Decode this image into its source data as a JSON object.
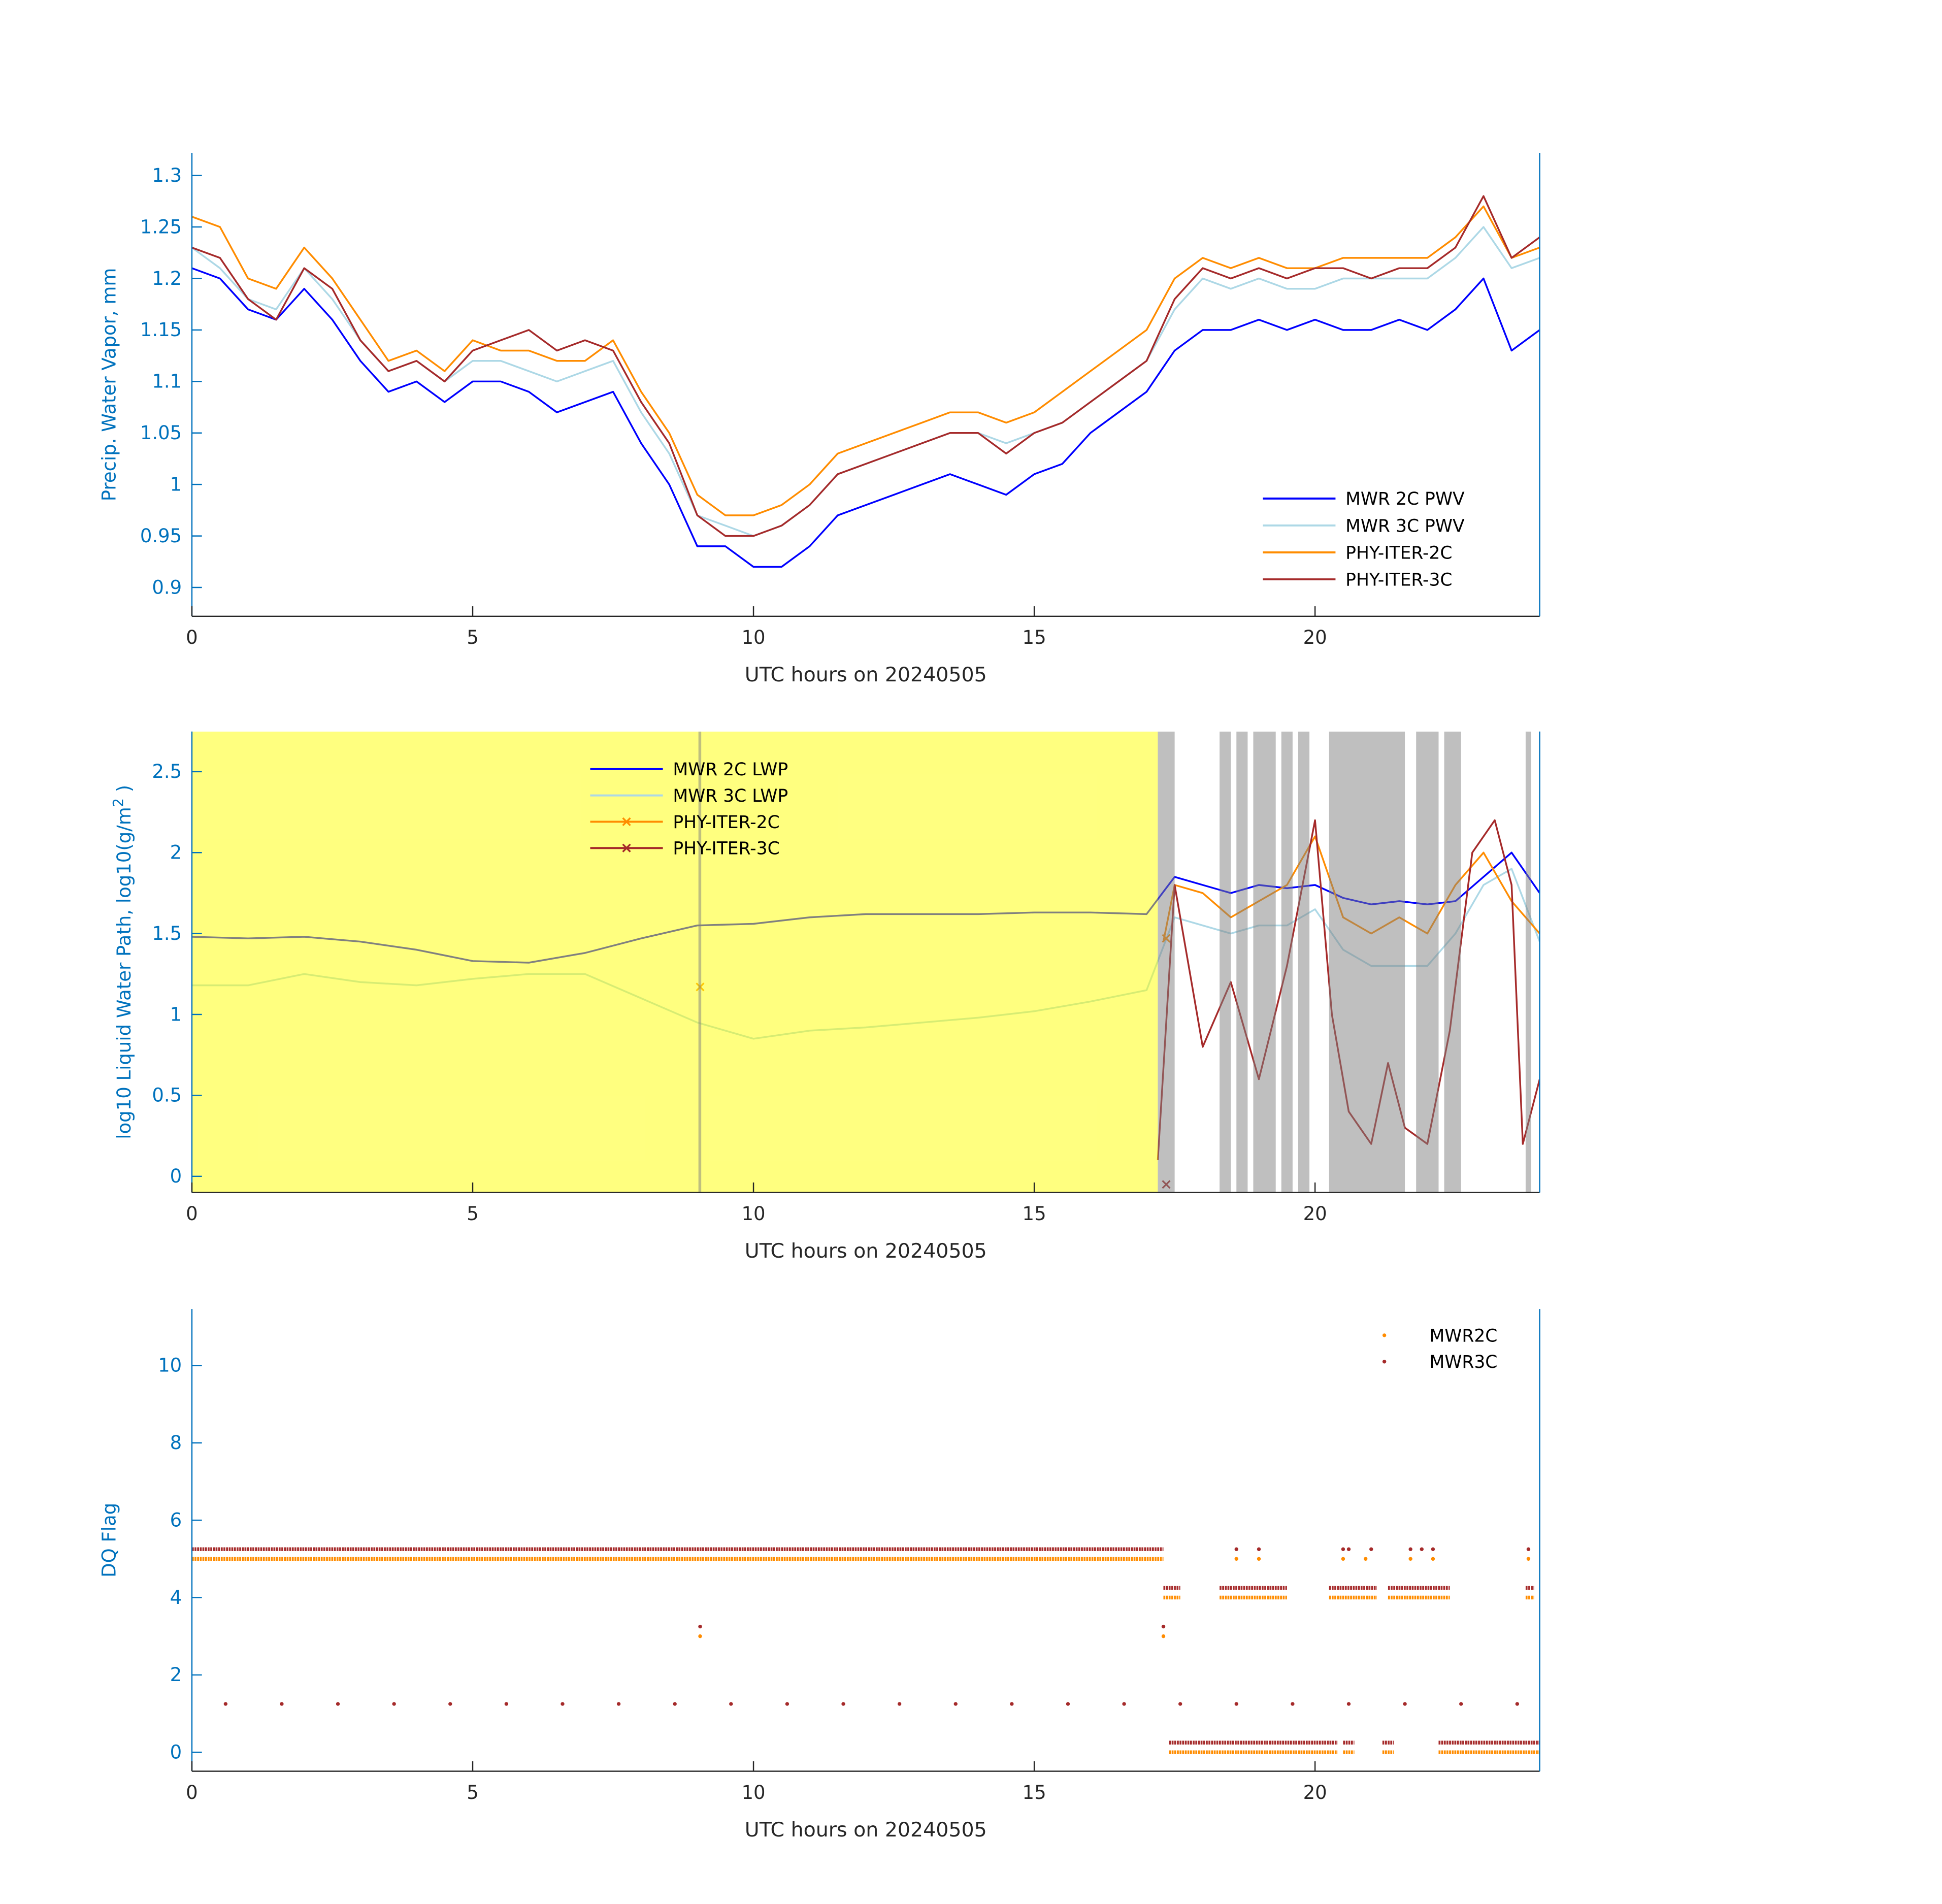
{
  "chart_data": [
    {
      "type": "line",
      "xlabel": "UTC hours on 20240505",
      "ylabel": "Precip. Water Vapor, mm",
      "xlim": [
        0,
        24
      ],
      "ylim": [
        0.872,
        1.322
      ],
      "xticks": [
        "0",
        "5",
        "10",
        "15",
        "20"
      ],
      "xtick_values": [
        0,
        5,
        10,
        15,
        20
      ],
      "yticks": [
        "0.9",
        "0.95",
        "1",
        "1.05",
        "1.1",
        "1.15",
        "1.2",
        "1.25",
        "1.3"
      ],
      "ytick_values": [
        0.9,
        0.95,
        1,
        1.05,
        1.1,
        1.15,
        1.2,
        1.25,
        1.3
      ],
      "legend_position": "bottom-right",
      "x_step": 0.5,
      "series": [
        {
          "name": "MWR 2C PWV",
          "color": "#0000ff",
          "values": [
            1.21,
            1.2,
            1.17,
            1.16,
            1.19,
            1.16,
            1.12,
            1.09,
            1.1,
            1.08,
            1.1,
            1.1,
            1.09,
            1.07,
            1.08,
            1.09,
            1.04,
            1.0,
            0.94,
            0.94,
            0.92,
            0.92,
            0.94,
            0.97,
            0.98,
            0.99,
            1.0,
            1.01,
            1.0,
            0.99,
            1.01,
            1.02,
            1.05,
            1.07,
            1.09,
            1.13,
            1.15,
            1.15,
            1.16,
            1.15,
            1.16,
            1.15,
            1.15,
            1.16,
            1.15,
            1.17,
            1.2,
            1.13,
            1.15
          ]
        },
        {
          "name": "MWR 3C PWV",
          "color": "#add8e6",
          "values": [
            1.23,
            1.21,
            1.18,
            1.17,
            1.21,
            1.18,
            1.14,
            1.11,
            1.12,
            1.1,
            1.12,
            1.12,
            1.11,
            1.1,
            1.11,
            1.12,
            1.07,
            1.03,
            0.97,
            0.96,
            0.95,
            0.96,
            0.98,
            1.01,
            1.02,
            1.03,
            1.04,
            1.05,
            1.05,
            1.04,
            1.05,
            1.06,
            1.08,
            1.1,
            1.12,
            1.17,
            1.2,
            1.19,
            1.2,
            1.19,
            1.19,
            1.2,
            1.2,
            1.2,
            1.2,
            1.22,
            1.25,
            1.21,
            1.22
          ]
        },
        {
          "name": "PHY-ITER-2C",
          "color": "#ff8c00",
          "values": [
            1.26,
            1.25,
            1.2,
            1.19,
            1.23,
            1.2,
            1.16,
            1.12,
            1.13,
            1.11,
            1.14,
            1.13,
            1.13,
            1.12,
            1.12,
            1.14,
            1.09,
            1.05,
            0.99,
            0.97,
            0.97,
            0.98,
            1.0,
            1.03,
            1.04,
            1.05,
            1.06,
            1.07,
            1.07,
            1.06,
            1.07,
            1.09,
            1.11,
            1.13,
            1.15,
            1.2,
            1.22,
            1.21,
            1.22,
            1.21,
            1.21,
            1.22,
            1.22,
            1.22,
            1.22,
            1.24,
            1.27,
            1.22,
            1.23
          ]
        },
        {
          "name": "PHY-ITER-3C",
          "color": "#a52a2a",
          "values": [
            1.23,
            1.22,
            1.18,
            1.16,
            1.21,
            1.19,
            1.14,
            1.11,
            1.12,
            1.1,
            1.13,
            1.14,
            1.15,
            1.13,
            1.14,
            1.13,
            1.08,
            1.04,
            0.97,
            0.95,
            0.95,
            0.96,
            0.98,
            1.01,
            1.02,
            1.03,
            1.04,
            1.05,
            1.05,
            1.03,
            1.05,
            1.06,
            1.08,
            1.1,
            1.12,
            1.18,
            1.21,
            1.2,
            1.21,
            1.2,
            1.21,
            1.21,
            1.2,
            1.21,
            1.21,
            1.23,
            1.28,
            1.22,
            1.24
          ]
        }
      ]
    },
    {
      "type": "line",
      "xlabel": "UTC hours on 20240505",
      "ylabel": "log10 Liquid Water Path, log10(g/m",
      "ylabel_sup": "2",
      "ylabel_end": " )",
      "xlim": [
        0,
        24
      ],
      "ylim": [
        -0.1,
        2.748
      ],
      "xticks": [
        "0",
        "5",
        "10",
        "15",
        "20"
      ],
      "xtick_values": [
        0,
        5,
        10,
        15,
        20
      ],
      "yticks": [
        "0",
        "0.5",
        "1",
        "1.5",
        "2",
        "2.5"
      ],
      "ytick_values": [
        0,
        0.5,
        1,
        1.5,
        2,
        2.5
      ],
      "legend_position": "top-center",
      "yellow_shading_hours": [
        0,
        17.2
      ],
      "gray_shading_hours": [
        [
          9.02,
          9.07
        ],
        [
          17.2,
          17.5
        ],
        [
          18.3,
          18.5
        ],
        [
          18.6,
          18.8
        ],
        [
          18.9,
          19.3
        ],
        [
          19.4,
          19.6
        ],
        [
          19.7,
          19.9
        ],
        [
          20.25,
          21.6
        ],
        [
          21.8,
          22.2
        ],
        [
          22.3,
          22.6
        ],
        [
          23.75,
          23.85
        ]
      ],
      "series": [
        {
          "name": "MWR 2C LWP",
          "color": "#0000ff",
          "marker": "none",
          "x": [
            0,
            1,
            2,
            3,
            4,
            5,
            6,
            7,
            8,
            9,
            10,
            11,
            12,
            13,
            14,
            15,
            16,
            17,
            17.5,
            18,
            18.5,
            19,
            19.5,
            20,
            20.5,
            21,
            21.5,
            22,
            22.5,
            23,
            23.5,
            24
          ],
          "values": [
            1.48,
            1.47,
            1.48,
            1.45,
            1.4,
            1.33,
            1.32,
            1.38,
            1.47,
            1.55,
            1.56,
            1.6,
            1.62,
            1.62,
            1.62,
            1.63,
            1.63,
            1.62,
            1.85,
            1.8,
            1.75,
            1.8,
            1.78,
            1.8,
            1.72,
            1.68,
            1.7,
            1.68,
            1.7,
            1.85,
            2.0,
            1.75
          ]
        },
        {
          "name": "MWR 3C LWP",
          "color": "#add8e6",
          "marker": "none",
          "x": [
            0,
            1,
            2,
            3,
            4,
            5,
            6,
            7,
            8,
            9,
            10,
            11,
            12,
            13,
            14,
            15,
            16,
            17,
            17.5,
            18,
            18.5,
            19,
            19.5,
            20,
            20.5,
            21,
            21.5,
            22,
            22.5,
            23,
            23.5,
            24
          ],
          "values": [
            1.18,
            1.18,
            1.25,
            1.2,
            1.18,
            1.22,
            1.25,
            1.25,
            1.1,
            0.95,
            0.85,
            0.9,
            0.92,
            0.95,
            0.98,
            1.02,
            1.08,
            1.15,
            1.6,
            1.55,
            1.5,
            1.55,
            1.55,
            1.65,
            1.4,
            1.3,
            1.3,
            1.3,
            1.5,
            1.8,
            1.9,
            1.45
          ]
        },
        {
          "name": "PHY-ITER-2C",
          "color": "#ff8c00",
          "marker": "x",
          "x": [
            17.3,
            17.5,
            18,
            18.5,
            19,
            19.5,
            20,
            20.5,
            21,
            21.5,
            22,
            22.5,
            23,
            23.5,
            24
          ],
          "values": [
            1.45,
            1.8,
            1.75,
            1.6,
            1.7,
            1.8,
            2.1,
            1.6,
            1.5,
            1.6,
            1.5,
            1.8,
            2.0,
            1.7,
            1.5
          ],
          "isolated_markers": [
            [
              9.05,
              1.17
            ],
            [
              17.35,
              1.47
            ]
          ]
        },
        {
          "name": "PHY-ITER-3C",
          "color": "#a52a2a",
          "marker": "x",
          "x": [
            17.2,
            17.5,
            17.8,
            18,
            18.5,
            19,
            19.5,
            20,
            20.3,
            20.6,
            21,
            21.3,
            21.6,
            22,
            22.4,
            22.8,
            23.2,
            23.5,
            23.7,
            24
          ],
          "values": [
            0.1,
            1.8,
            1.2,
            0.8,
            1.2,
            0.6,
            1.3,
            2.2,
            1.0,
            0.4,
            0.2,
            0.7,
            0.3,
            0.2,
            0.9,
            2.0,
            2.2,
            1.8,
            0.2,
            0.6
          ],
          "isolated_markers": [
            [
              17.35,
              -0.05
            ]
          ]
        }
      ]
    },
    {
      "type": "scatter",
      "xlabel": "UTC hours on 20240505",
      "ylabel": "DQ Flag",
      "xlim": [
        0,
        24
      ],
      "ylim": [
        -0.49,
        11.46
      ],
      "xticks": [
        "0",
        "5",
        "10",
        "15",
        "20"
      ],
      "xtick_values": [
        0,
        5,
        10,
        15,
        20
      ],
      "yticks": [
        "0",
        "2",
        "4",
        "6",
        "8",
        "10"
      ],
      "ytick_values": [
        0,
        2,
        4,
        6,
        8,
        10
      ],
      "legend_position": "top-right",
      "series": [
        {
          "name": "MWR2C",
          "color": "#ff8c00",
          "runs": [
            [
              0,
              17.3,
              5
            ],
            [
              17.4,
              20.4,
              0
            ],
            [
              20.5,
              20.7,
              0
            ],
            [
              21.2,
              21.4,
              0
            ],
            [
              22.2,
              24,
              0
            ],
            [
              17.3,
              17.6,
              4
            ],
            [
              18.3,
              19.5,
              4
            ],
            [
              20.25,
              21.1,
              4
            ],
            [
              21.3,
              22.4,
              4
            ],
            [
              23.75,
              23.9,
              4
            ]
          ],
          "points": [
            [
              9.05,
              3
            ],
            [
              17.3,
              3
            ],
            [
              18.6,
              5
            ],
            [
              19.0,
              5
            ],
            [
              20.5,
              5
            ],
            [
              20.9,
              5
            ],
            [
              21.7,
              5
            ],
            [
              22.1,
              5
            ],
            [
              23.8,
              5
            ]
          ]
        },
        {
          "name": "MWR3C",
          "color": "#a52a2a",
          "runs": [
            [
              0,
              17.3,
              5.25
            ],
            [
              17.4,
              20.4,
              0.25
            ],
            [
              20.5,
              20.7,
              0.25
            ],
            [
              21.2,
              21.4,
              0.25
            ],
            [
              22.2,
              24,
              0.25
            ],
            [
              17.3,
              17.6,
              4.25
            ],
            [
              18.3,
              19.5,
              4.25
            ],
            [
              20.25,
              21.1,
              4.25
            ],
            [
              21.3,
              22.4,
              4.25
            ],
            [
              23.75,
              23.9,
              4.25
            ]
          ],
          "points": [
            [
              9.05,
              3.25
            ],
            [
              17.3,
              3.25
            ],
            [
              18.6,
              5.25
            ],
            [
              19.0,
              5.25
            ],
            [
              20.5,
              5.25
            ],
            [
              20.6,
              5.25
            ],
            [
              21.0,
              5.25
            ],
            [
              21.7,
              5.25
            ],
            [
              21.9,
              5.25
            ],
            [
              22.1,
              5.25
            ],
            [
              23.8,
              5.25
            ],
            [
              0.6,
              1.25
            ],
            [
              1.6,
              1.25
            ],
            [
              2.6,
              1.25
            ],
            [
              3.6,
              1.25
            ],
            [
              4.6,
              1.25
            ],
            [
              5.6,
              1.25
            ],
            [
              6.6,
              1.25
            ],
            [
              7.6,
              1.25
            ],
            [
              8.6,
              1.25
            ],
            [
              9.6,
              1.25
            ],
            [
              10.6,
              1.25
            ],
            [
              11.6,
              1.25
            ],
            [
              12.6,
              1.25
            ],
            [
              13.6,
              1.25
            ],
            [
              14.6,
              1.25
            ],
            [
              15.6,
              1.25
            ],
            [
              16.6,
              1.25
            ],
            [
              17.6,
              1.25
            ],
            [
              18.6,
              1.25
            ],
            [
              19.6,
              1.25
            ],
            [
              20.6,
              1.25
            ],
            [
              21.6,
              1.25
            ],
            [
              22.6,
              1.25
            ],
            [
              23.6,
              1.25
            ]
          ]
        }
      ]
    }
  ]
}
